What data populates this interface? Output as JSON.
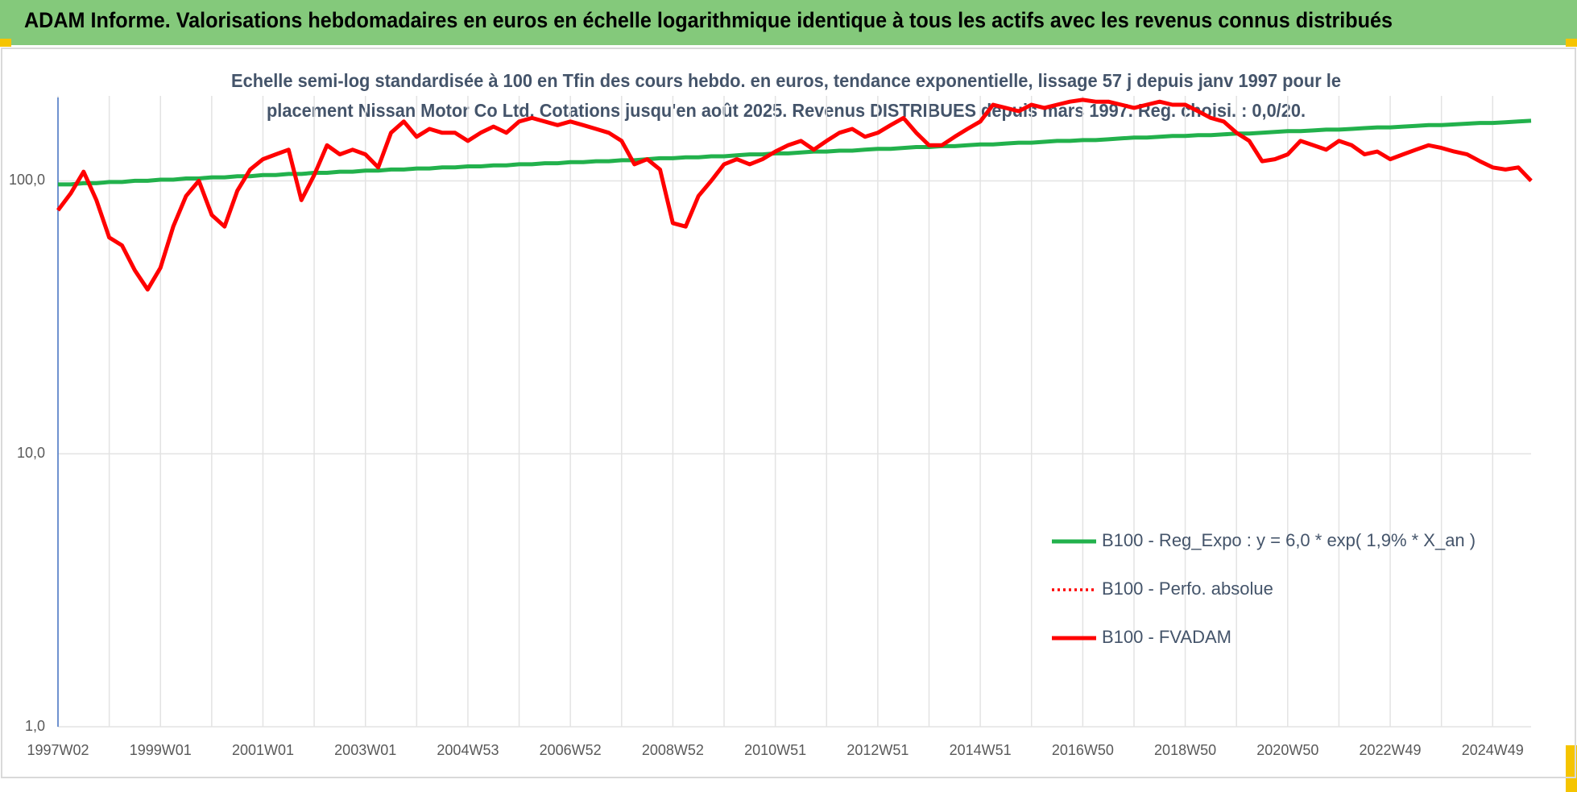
{
  "chart_data": {
    "type": "line",
    "title": "ADAM Informe. Valorisations hebdomadaires en euros en échelle logarithmique identique à tous les actifs avec les revenus connus distribués",
    "subtitle": [
      "Echelle semi-log standardisée à 100 en Tfin des cours hebdo. en euros, tendance exponentielle, lissage 57 j depuis janv 1997 pour le",
      "placement Nissan Motor Co Ltd. Cotations jusqu'en août 2025. Revenus DISTRIBUES depuis mars 1997. Reg. choisi. : 0,0/20."
    ],
    "categories": [
      "1997W02",
      null,
      null,
      null,
      null,
      null,
      null,
      null,
      "1999W01",
      null,
      null,
      null,
      null,
      null,
      null,
      null,
      "2001W01",
      null,
      null,
      null,
      null,
      null,
      null,
      null,
      "2003W01",
      null,
      null,
      null,
      null,
      null,
      null,
      null,
      "2004W53",
      null,
      null,
      null,
      null,
      null,
      null,
      null,
      "2006W52",
      null,
      null,
      null,
      null,
      null,
      null,
      null,
      "2008W52",
      null,
      null,
      null,
      null,
      null,
      null,
      null,
      "2010W51",
      null,
      null,
      null,
      null,
      null,
      null,
      null,
      "2012W51",
      null,
      null,
      null,
      null,
      null,
      null,
      null,
      "2014W51",
      null,
      null,
      null,
      null,
      null,
      null,
      null,
      "2016W50",
      null,
      null,
      null,
      null,
      null,
      null,
      null,
      "2018W50",
      null,
      null,
      null,
      null,
      null,
      null,
      null,
      "2020W50",
      null,
      null,
      null,
      null,
      null,
      null,
      null,
      "2022W49",
      null,
      null,
      null,
      null,
      null,
      null,
      null,
      "2024W49",
      null,
      null,
      null
    ],
    "series": [
      {
        "name": "B100 - Reg_Expo : y = 6,0 * exp( 1,9% *  X_an )",
        "color": "#22b14c",
        "style": "solid",
        "values": [
          97,
          97,
          98,
          98,
          99,
          99,
          100,
          100,
          101,
          101,
          102,
          102,
          103,
          103,
          104,
          104,
          105,
          105,
          106,
          106,
          107,
          107,
          108,
          108,
          109,
          109,
          110,
          110,
          111,
          111,
          112,
          112,
          113,
          113,
          114,
          114,
          115,
          115,
          116,
          116,
          117,
          117,
          118,
          118,
          119,
          119,
          120,
          121,
          121,
          122,
          122,
          123,
          123,
          124,
          125,
          125,
          126,
          126,
          127,
          128,
          128,
          129,
          129,
          130,
          131,
          131,
          132,
          133,
          133,
          134,
          134,
          135,
          136,
          136,
          137,
          138,
          138,
          139,
          140,
          140,
          141,
          141,
          142,
          143,
          144,
          144,
          145,
          146,
          146,
          147,
          147,
          148,
          149,
          149,
          150,
          151,
          152,
          152,
          153,
          154,
          154,
          155,
          156,
          157,
          157,
          158,
          159,
          160,
          160,
          161,
          162,
          163,
          163,
          164,
          165,
          166
        ]
      },
      {
        "name": "B100 - Perfo. absolue",
        "color": "#ff0000",
        "style": "dotted",
        "values": [
          78,
          90,
          108,
          85,
          62,
          58,
          47,
          40,
          48,
          68,
          88,
          100,
          75,
          68,
          92,
          110,
          120,
          125,
          130,
          85,
          105,
          135,
          125,
          130,
          125,
          112,
          150,
          165,
          145,
          155,
          150,
          150,
          140,
          150,
          158,
          150,
          165,
          170,
          165,
          160,
          165,
          160,
          155,
          150,
          140,
          115,
          120,
          110,
          70,
          68,
          88,
          100,
          115,
          120,
          115,
          120,
          128,
          135,
          140,
          130,
          140,
          150,
          155,
          145,
          150,
          160,
          170,
          150,
          135,
          135,
          145,
          155,
          165,
          190,
          185,
          180,
          190,
          185,
          190,
          195,
          198,
          195,
          195,
          190,
          185,
          190,
          195,
          190,
          190,
          180,
          170,
          165,
          150,
          140,
          118,
          120,
          125,
          140,
          135,
          130,
          140,
          135,
          125,
          128,
          120,
          125,
          130,
          135,
          132,
          128,
          125,
          118,
          112,
          110,
          112,
          100
        ]
      },
      {
        "name": "B100 - FVADAM",
        "color": "#ff0000",
        "style": "solid",
        "values": [
          78,
          90,
          108,
          85,
          62,
          58,
          47,
          40,
          48,
          68,
          88,
          100,
          75,
          68,
          92,
          110,
          120,
          125,
          130,
          85,
          105,
          135,
          125,
          130,
          125,
          112,
          150,
          165,
          145,
          155,
          150,
          150,
          140,
          150,
          158,
          150,
          165,
          170,
          165,
          160,
          165,
          160,
          155,
          150,
          140,
          115,
          120,
          110,
          70,
          68,
          88,
          100,
          115,
          120,
          115,
          120,
          128,
          135,
          140,
          130,
          140,
          150,
          155,
          145,
          150,
          160,
          170,
          150,
          135,
          135,
          145,
          155,
          165,
          190,
          185,
          180,
          190,
          185,
          190,
          195,
          198,
          195,
          195,
          190,
          185,
          190,
          195,
          190,
          190,
          180,
          170,
          165,
          150,
          140,
          118,
          120,
          125,
          140,
          135,
          130,
          140,
          135,
          125,
          128,
          120,
          125,
          130,
          135,
          132,
          128,
          125,
          118,
          112,
          110,
          112,
          100
        ]
      }
    ],
    "ylim": [
      1,
      202
    ],
    "yticks": [
      {
        "value": 1,
        "label": "1,0"
      },
      {
        "value": 10,
        "label": "10,0"
      },
      {
        "value": 100,
        "label": "100,0"
      }
    ],
    "log_y": true,
    "grid": true,
    "legend": "right"
  }
}
